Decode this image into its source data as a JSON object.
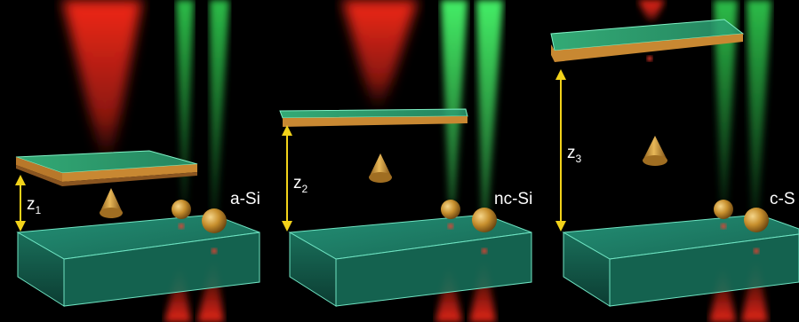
{
  "panels": [
    {
      "material_label": "a-Si",
      "distance_label": "z",
      "distance_subscript": "1"
    },
    {
      "material_label": "nc-Si",
      "distance_label": "z",
      "distance_subscript": "2"
    },
    {
      "material_label": "c-S",
      "distance_label": "z",
      "distance_subscript": "3"
    }
  ],
  "colors": {
    "background": "#000000",
    "red_beam": "#ff2a1a",
    "green_beam": "#33dd55",
    "substrate_glass": "#2aa889",
    "gold_particle": "#c8902e",
    "probe_plate_coating": "#b8782a",
    "arrow": "#f2d21a"
  },
  "icons": [
    "gold-tip-icon",
    "gold-sphere-icon",
    "double-arrow-icon"
  ]
}
